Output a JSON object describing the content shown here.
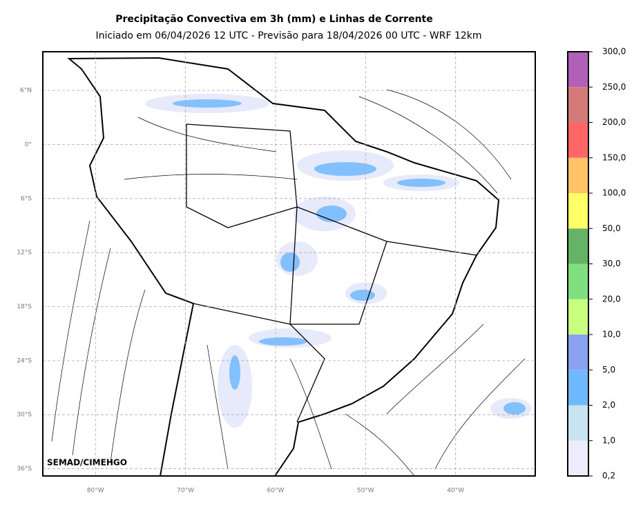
{
  "header": {
    "title": "Precipitação Convectiva em 3h (mm) e Linhas de Corrente",
    "subtitle": "Iniciado em 06/04/2026 12 UTC - Previsão para 18/04/2026 00 UTC - WRF 12km"
  },
  "map": {
    "xlim": [
      -85.85,
      -31.15
    ],
    "ylim": [
      -36.8,
      10.3
    ],
    "xticks": [
      {
        "value": -80,
        "label": "80°W"
      },
      {
        "value": -70,
        "label": "70°W"
      },
      {
        "value": -60,
        "label": "60°W"
      },
      {
        "value": -50,
        "label": "50°W"
      },
      {
        "value": -40,
        "label": "40°W"
      }
    ],
    "yticks": [
      {
        "value": 6,
        "label": "6°N"
      },
      {
        "value": 0,
        "label": "0°"
      },
      {
        "value": -6,
        "label": "6°S"
      },
      {
        "value": -12,
        "label": "12°S"
      },
      {
        "value": -18,
        "label": "18°S"
      },
      {
        "value": -24,
        "label": "24°S"
      },
      {
        "value": -30,
        "label": "30°S"
      },
      {
        "value": -36,
        "label": "36°S"
      }
    ],
    "grid": true,
    "watermark": "SEMAD/CIMEHGO"
  },
  "colorbar": {
    "boundaries": [
      {
        "value": 0.2,
        "label": "0,2"
      },
      {
        "value": 1,
        "label": "1,0"
      },
      {
        "value": 2,
        "label": "2,0"
      },
      {
        "value": 5,
        "label": "5,0"
      },
      {
        "value": 10,
        "label": "10,0"
      },
      {
        "value": 20,
        "label": "20,0"
      },
      {
        "value": 30,
        "label": "30,0"
      },
      {
        "value": 50,
        "label": "50,0"
      },
      {
        "value": 100,
        "label": "100,0"
      },
      {
        "value": 150,
        "label": "150,0"
      },
      {
        "value": 200,
        "label": "200,0"
      },
      {
        "value": 250,
        "label": "250,0"
      },
      {
        "value": 300,
        "label": "300,0"
      }
    ],
    "colors": [
      "#ececfc",
      "#c8e4f0",
      "#70b8ff",
      "#8aa0f0",
      "#c8ff80",
      "#80e080",
      "#66b266",
      "#ffff66",
      "#ffc266",
      "#ff6666",
      "#d47a78",
      "#b060b8"
    ]
  }
}
